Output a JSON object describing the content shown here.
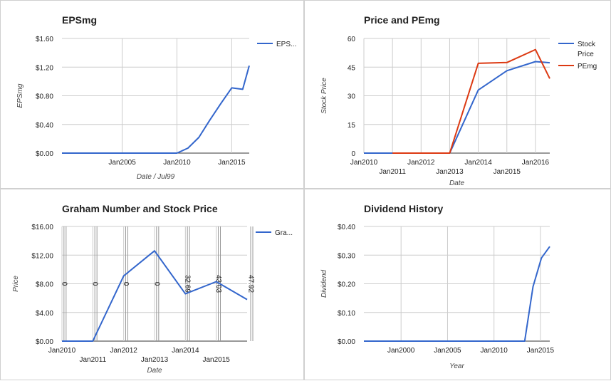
{
  "chart_data": [
    {
      "type": "line",
      "title": "EPSmg",
      "xlabel": "Date / Jul99",
      "ylabel": "EPSmg",
      "xlim": [
        1999.5,
        2016.6
      ],
      "ylim": [
        0,
        1.6
      ],
      "yticks": [
        0,
        0.4,
        0.8,
        1.2,
        1.6
      ],
      "yticklabels": [
        "$0.00",
        "$0.40",
        "$0.80",
        "$1.20",
        "$1.60"
      ],
      "xticks": [
        2005,
        2010,
        2015
      ],
      "xticklabels": [
        "Jan2005",
        "Jan2010",
        "Jan2015"
      ],
      "legend": "right",
      "series": [
        {
          "name": "EPS...",
          "color": "#3366cc",
          "points": [
            [
              1999.5,
              0
            ],
            [
              2010,
              0
            ],
            [
              2011,
              0.07
            ],
            [
              2012,
              0.22
            ],
            [
              2013,
              0.46
            ],
            [
              2014,
              0.69
            ],
            [
              2015,
              0.91
            ],
            [
              2016,
              0.89
            ],
            [
              2016.6,
              1.22
            ]
          ]
        }
      ]
    },
    {
      "type": "line",
      "title": "Price and PEmg",
      "xlabel": "Date",
      "ylabel": "Stock Price",
      "xlim": [
        2010,
        2016.5
      ],
      "ylim": [
        0,
        60
      ],
      "yticks": [
        0,
        15,
        30,
        45,
        60
      ],
      "yticklabels": [
        "0",
        "15",
        "30",
        "45",
        "60"
      ],
      "xticks": [
        2010,
        2011,
        2012,
        2013,
        2014,
        2015,
        2016
      ],
      "xticklabels": [
        "Jan2010",
        "Jan2011",
        "Jan2012",
        "Jan2013",
        "Jan2014",
        "Jan2015",
        "Jan2016"
      ],
      "legend": "right",
      "series": [
        {
          "name": "Stock Price",
          "color": "#3366cc",
          "points": [
            [
              2010,
              0
            ],
            [
              2013,
              0
            ],
            [
              2014,
              33
            ],
            [
              2015,
              43.1
            ],
            [
              2016,
              47.9
            ],
            [
              2016.5,
              47.3
            ]
          ]
        },
        {
          "name": "PEmg",
          "color": "#dc3912",
          "points": [
            [
              2011,
              0
            ],
            [
              2013,
              0
            ],
            [
              2014,
              47
            ],
            [
              2015,
              47.4
            ],
            [
              2016,
              54.2
            ],
            [
              2016.5,
              39
            ]
          ]
        }
      ]
    },
    {
      "type": "line",
      "title": "Graham Number and Stock Price",
      "xlabel": "Date",
      "ylabel": "Price",
      "xlim": [
        2010,
        2016
      ],
      "ylim": [
        0,
        16
      ],
      "yticks": [
        0,
        4,
        8,
        12,
        16
      ],
      "yticklabels": [
        "$0.00",
        "$4.00",
        "$8.00",
        "$12.00",
        "$16.00"
      ],
      "xticks": [
        2010,
        2011,
        2012,
        2013,
        2014,
        2015
      ],
      "xticklabels": [
        "Jan2010",
        "Jan2011",
        "Jan2012",
        "Jan2013",
        "Jan2014",
        "Jan2015"
      ],
      "legend": "right",
      "annotations": [
        {
          "x": 2010.1,
          "text": "0"
        },
        {
          "x": 2011.1,
          "text": "0"
        },
        {
          "x": 2012.1,
          "text": "0"
        },
        {
          "x": 2013.1,
          "text": "0"
        },
        {
          "x": 2014.1,
          "text": "32.69"
        },
        {
          "x": 2015.1,
          "text": "43.03"
        },
        {
          "x": 2016.15,
          "text": "47.92"
        }
      ],
      "series": [
        {
          "name": "Gra...",
          "color": "#3366cc",
          "points": [
            [
              2010,
              0
            ],
            [
              2011,
              0
            ],
            [
              2012,
              9.1
            ],
            [
              2013,
              12.6
            ],
            [
              2014,
              6.6
            ],
            [
              2015,
              8.3
            ],
            [
              2016,
              5.8
            ]
          ]
        }
      ]
    },
    {
      "type": "line",
      "title": "Dividend History",
      "xlabel": "Year",
      "ylabel": "Dividend",
      "xlim": [
        1996,
        2016
      ],
      "ylim": [
        0,
        0.4
      ],
      "yticks": [
        0,
        0.1,
        0.2,
        0.3,
        0.4
      ],
      "yticklabels": [
        "$0.00",
        "$0.10",
        "$0.20",
        "$0.30",
        "$0.40"
      ],
      "xticks": [
        2000,
        2005,
        2010,
        2015
      ],
      "xticklabels": [
        "Jan2000",
        "Jan2005",
        "Jan2010",
        "Jan2015"
      ],
      "series": [
        {
          "name": "Dividend",
          "color": "#3366cc",
          "points": [
            [
              1996,
              0
            ],
            [
              2013.3,
              0
            ],
            [
              2014.2,
              0.19
            ],
            [
              2015.1,
              0.29
            ],
            [
              2016,
              0.33
            ]
          ]
        }
      ]
    }
  ]
}
